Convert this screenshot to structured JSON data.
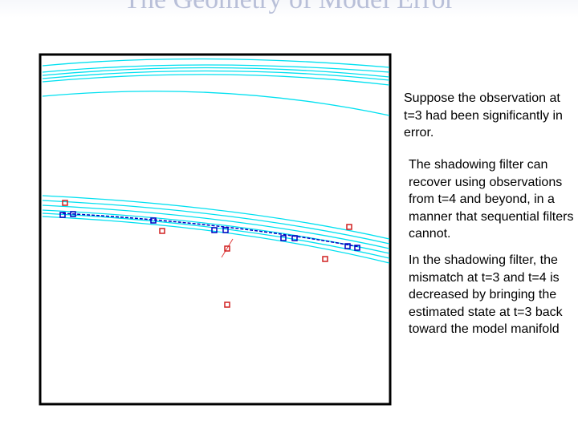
{
  "header": {
    "title": "The Geometry of Model Error"
  },
  "body": {
    "paragraphs": [
      "Suppose the observation at t=3 had been significantly in error.",
      "The shadowing filter can recover using observations from t=4 and beyond, in a manner that sequential filters cannot.",
      "In the shadowing filter, the mismatch at t=3 and t=4 is decreased by bringing the estimated state at t=3 back toward the model manifold"
    ]
  }
}
